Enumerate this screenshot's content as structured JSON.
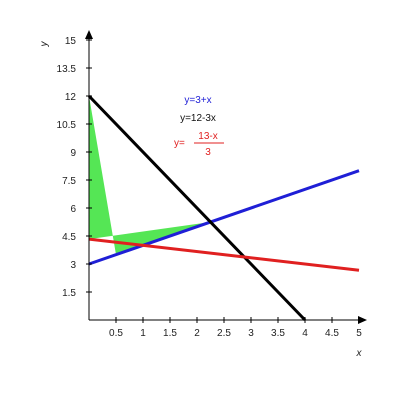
{
  "chart_data": {
    "type": "line",
    "title": "",
    "xlabel": "x",
    "ylabel": "y",
    "xlim": [
      0,
      5
    ],
    "ylim": [
      0,
      15
    ],
    "grid": false,
    "x_ticks": [
      0.5,
      1,
      1.5,
      2,
      2.5,
      3,
      3.5,
      4,
      4.5,
      5
    ],
    "x_tick_labels": [
      "0.5",
      "1",
      "1.5",
      "2",
      "2.5",
      "3",
      "3.5",
      "4",
      "4.5",
      "5"
    ],
    "y_ticks": [
      1.5,
      3,
      4.5,
      6,
      7.5,
      9,
      10.5,
      12,
      13.5,
      15
    ],
    "y_tick_labels": [
      "1.5",
      "3",
      "4.5",
      "6",
      "7.5",
      "9",
      "10.5",
      "12",
      "13.5",
      "15"
    ],
    "series": [
      {
        "name": "y=3+x",
        "color": "#1f1fd6",
        "x": [
          0,
          5
        ],
        "y": [
          3,
          8
        ]
      },
      {
        "name": "y=12-3x",
        "color": "#000000",
        "x": [
          0,
          4
        ],
        "y": [
          12,
          0
        ]
      },
      {
        "name": "y=(13-x)/3",
        "name_prefix": "y=",
        "name_numerator": "13-x",
        "name_denominator": "3",
        "color": "#e02020",
        "x": [
          0,
          5
        ],
        "y": [
          4.333,
          2.667
        ]
      }
    ],
    "shaded_region": {
      "color": "#55e655",
      "x": [
        0,
        0,
        0.5,
        2.25
      ],
      "y": [
        4.333,
        12,
        3.5,
        5.25
      ]
    }
  }
}
